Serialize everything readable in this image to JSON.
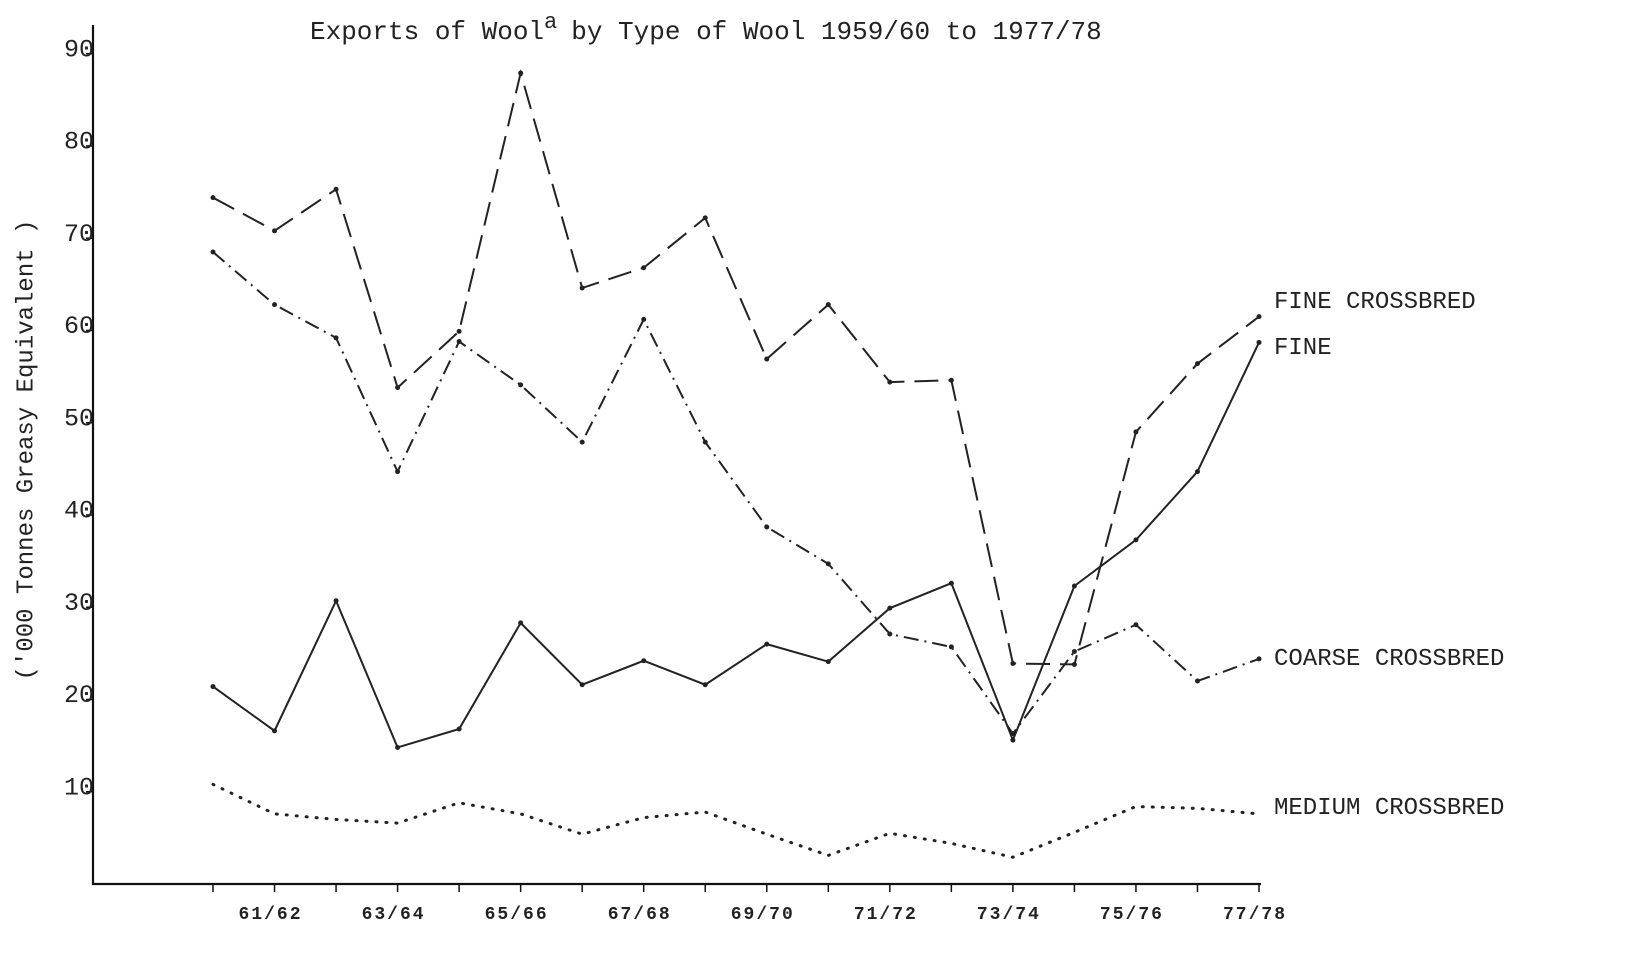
{
  "chart_data": {
    "type": "line",
    "title_main": "Exports of Wool",
    "title_footnote": "a",
    "title_rest": "by Type of Wool 1959/60 to 1977/78",
    "y_label": "('000 Tonnes Greasy Equivalent )",
    "categories": [
      null,
      "61/62",
      null,
      "63/64",
      null,
      "65/66",
      null,
      "67/68",
      null,
      "69/70",
      null,
      "71/72",
      null,
      "73/74",
      null,
      "75/76",
      null,
      "77/78"
    ],
    "ylim": [
      0,
      93
    ],
    "yticks": [
      10,
      20,
      30,
      40,
      50,
      60,
      70,
      80,
      90
    ],
    "series": [
      {
        "name": "FINE CROSSBRED",
        "color": "#222222",
        "dash": "dashed",
        "values": [
          74.4,
          70.8,
          75.3,
          53.8,
          59.9,
          87.9,
          64.6,
          66.8,
          72.2,
          56.9,
          62.8,
          54.4,
          54.6,
          23.9,
          23.8,
          49,
          56.4,
          61.5
        ]
      },
      {
        "name": "FINE",
        "color": "#222222",
        "dash": "solid",
        "values": [
          21.4,
          16.6,
          30.7,
          14.8,
          16.8,
          28.3,
          21.6,
          24.2,
          21.6,
          26,
          24.1,
          29.9,
          32.6,
          15.6,
          32.3,
          37.3,
          44.7,
          58.7
        ]
      },
      {
        "name": "COARSE CROSSBRED",
        "color": "#222222",
        "dash": "dash-dot",
        "values": [
          68.5,
          62.8,
          59.2,
          44.7,
          58.8,
          54.1,
          47.9,
          61.2,
          47.9,
          38.7,
          34.7,
          27.1,
          25.7,
          16.3,
          25.2,
          28.1,
          22,
          24.4
        ]
      },
      {
        "name": "MEDIUM CROSSBRED",
        "color": "#222222",
        "dash": "dotted",
        "values": [
          10.8,
          7.6,
          7,
          6.6,
          8.8,
          7.6,
          5.4,
          7.2,
          7.8,
          5.4,
          3.1,
          5.5,
          4.4,
          2.9,
          5.6,
          8.4,
          8.2,
          7.6
        ]
      }
    ]
  }
}
